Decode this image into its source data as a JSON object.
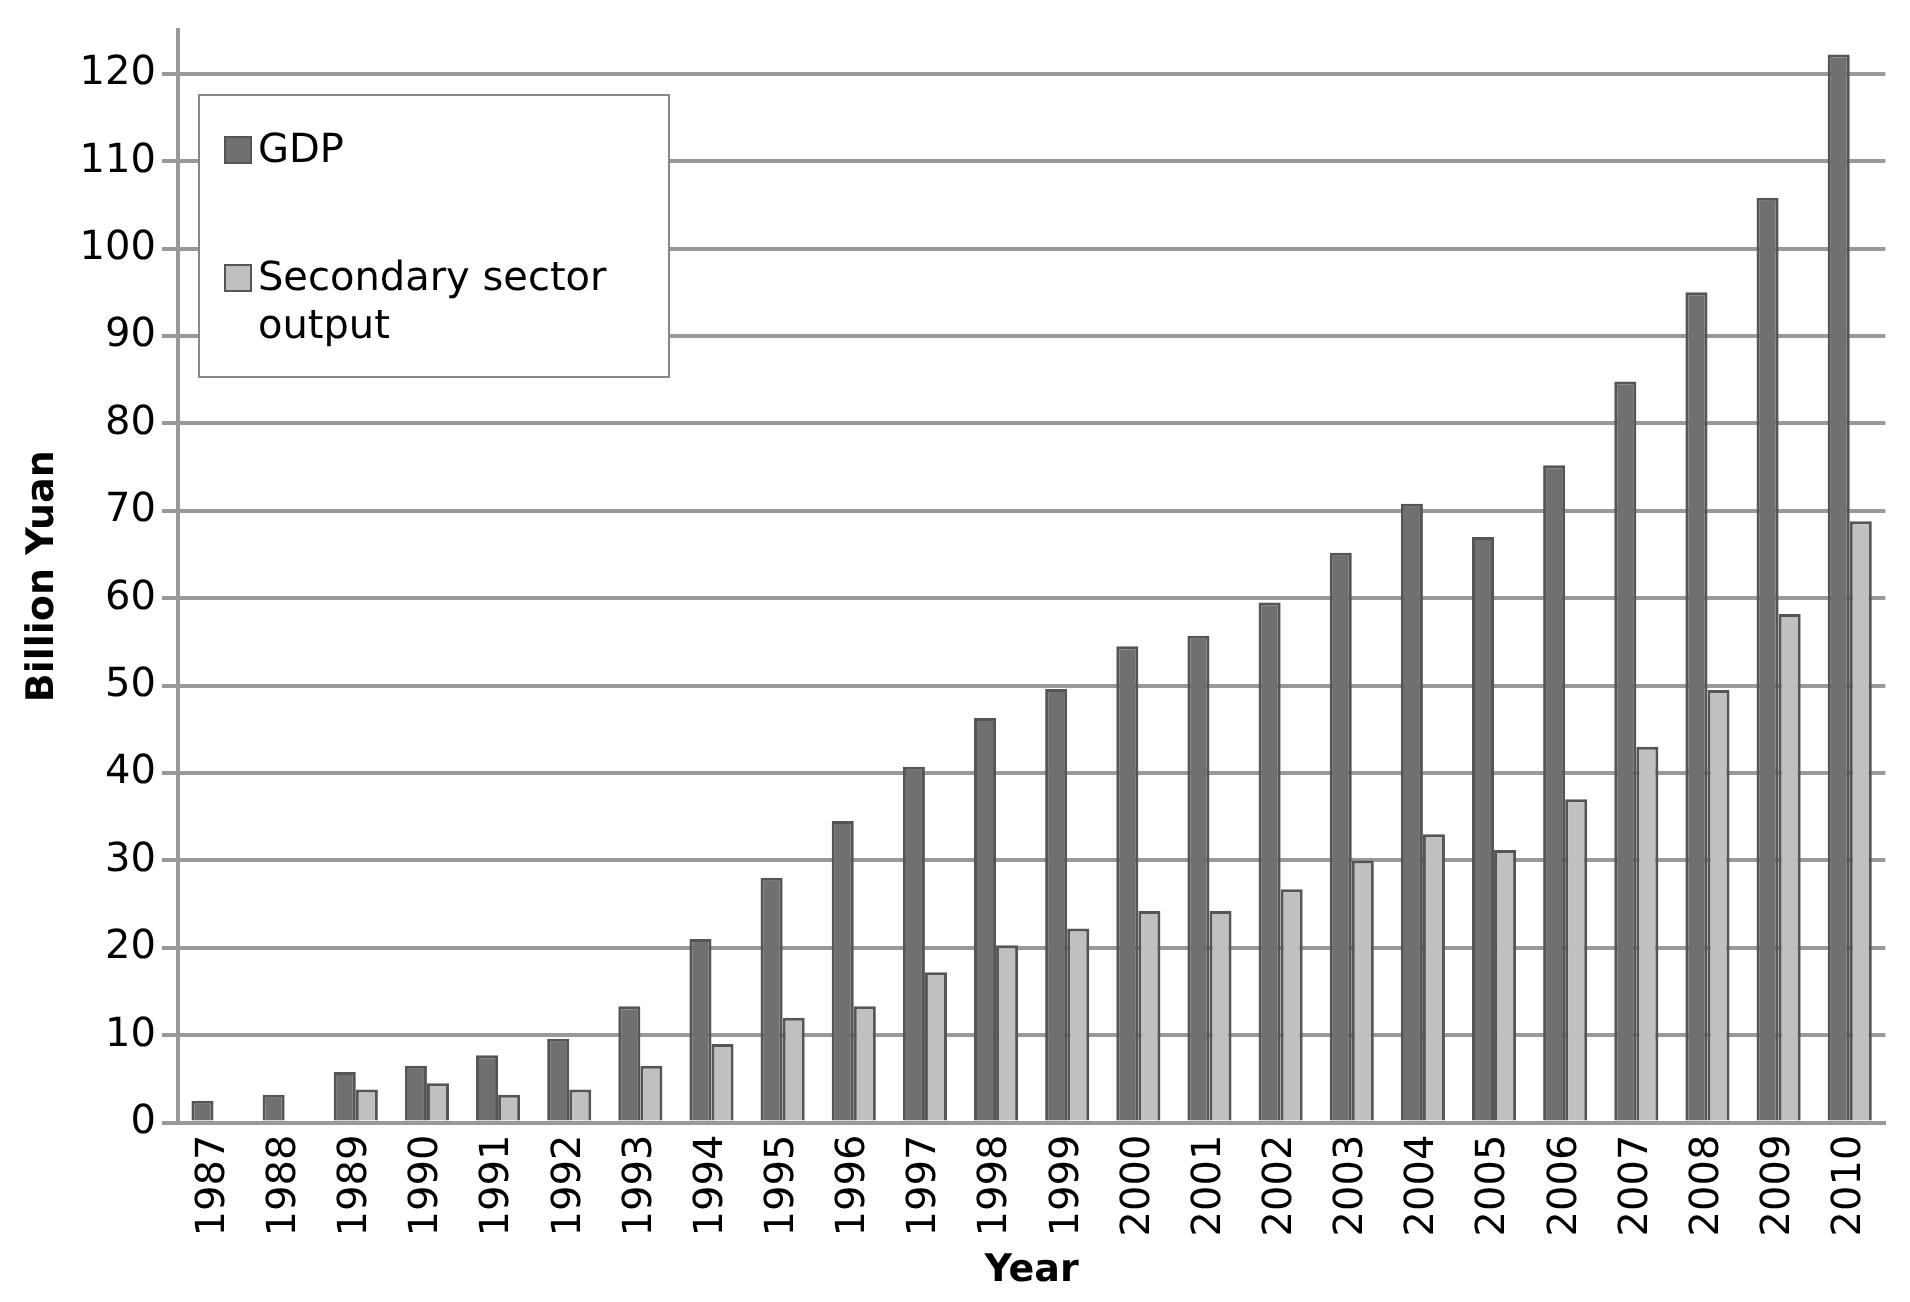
{
  "chart_data": {
    "type": "bar",
    "xlabel": "Year",
    "ylabel": "Billion Yuan",
    "categories": [
      "1987",
      "1988",
      "1989",
      "1990",
      "1991",
      "1992",
      "1993",
      "1994",
      "1995",
      "1996",
      "1997",
      "1998",
      "1999",
      "2000",
      "2001",
      "2002",
      "2003",
      "2004",
      "2005",
      "2006",
      "2007",
      "2008",
      "2009",
      "2010"
    ],
    "series": [
      {
        "name": "GDP",
        "color": "#707070",
        "values": [
          2.5,
          3.2,
          5.8,
          6.5,
          7.7,
          9.6,
          13.3,
          21,
          28,
          34.5,
          40.7,
          46.3,
          49.6,
          54.5,
          55.7,
          59.5,
          65.2,
          70.8,
          67,
          75.2,
          84.8,
          95,
          105.8,
          122.2
        ]
      },
      {
        "name": "Secondary sector output",
        "color": "#c0c0c0",
        "values": [
          null,
          null,
          3.8,
          4.5,
          3.2,
          3.8,
          6.5,
          9,
          12,
          13.3,
          17.2,
          20.3,
          22.2,
          24.2,
          24.2,
          26.7,
          30,
          33,
          31.2,
          37,
          43,
          49.5,
          58.2,
          68.8
        ]
      }
    ],
    "ylim": [
      0,
      125
    ],
    "yticks": [
      0,
      10,
      20,
      30,
      40,
      50,
      60,
      70,
      80,
      90,
      100,
      110,
      120
    ],
    "grid": "y",
    "legend": "top left"
  }
}
